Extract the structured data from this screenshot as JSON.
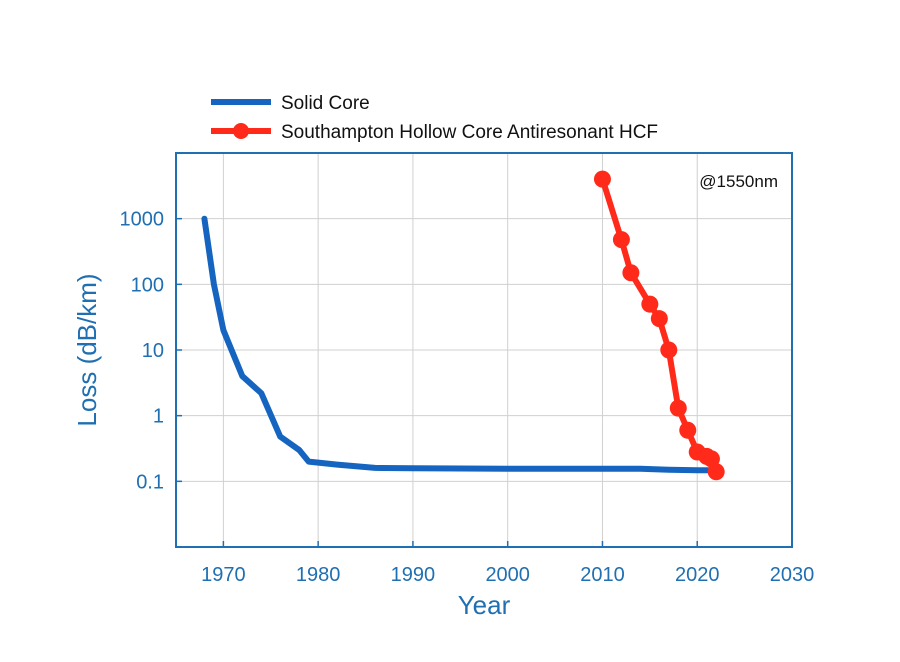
{
  "chart_data": {
    "type": "line",
    "title": "",
    "xlabel": "Year",
    "ylabel": "Loss (dB/km)",
    "xscale": "linear",
    "yscale": "log",
    "xlim": [
      1965,
      2030
    ],
    "ylim": [
      0.01,
      10000
    ],
    "xticks": [
      1970,
      1980,
      1990,
      2000,
      2010,
      2020,
      2030
    ],
    "xtick_labels": [
      "1970",
      "1980",
      "1990",
      "2000",
      "2010",
      "2020",
      "2030"
    ],
    "yticks": [
      0.1,
      1,
      10,
      100,
      1000
    ],
    "ytick_labels": [
      "0.1",
      "1",
      "10",
      "100",
      "1000"
    ],
    "grid": true,
    "legend_position": "top-left, above plot",
    "annotation": "@1550nm",
    "series": [
      {
        "name": "Solid Core",
        "color": "#1565c0",
        "marker": "none",
        "x": [
          1968,
          1969,
          1970,
          1972,
          1974,
          1976,
          1978,
          1979,
          1982,
          1986,
          1990,
          2000,
          2010,
          2014,
          2017,
          2020,
          2021.5
        ],
        "y": [
          1000,
          100,
          20,
          4,
          2.2,
          0.48,
          0.3,
          0.2,
          0.18,
          0.16,
          0.158,
          0.155,
          0.155,
          0.155,
          0.15,
          0.148,
          0.148
        ]
      },
      {
        "name": "Southampton Hollow Core Antiresonant HCF",
        "color": "#ff2a1a",
        "marker": "circle",
        "x": [
          2010,
          2012,
          2013,
          2015,
          2016,
          2017,
          2018,
          2019,
          2020,
          2021,
          2021.5,
          2022
        ],
        "y": [
          4000,
          480,
          150,
          50,
          30,
          10,
          1.3,
          0.6,
          0.28,
          0.24,
          0.22,
          0.14
        ]
      }
    ]
  }
}
